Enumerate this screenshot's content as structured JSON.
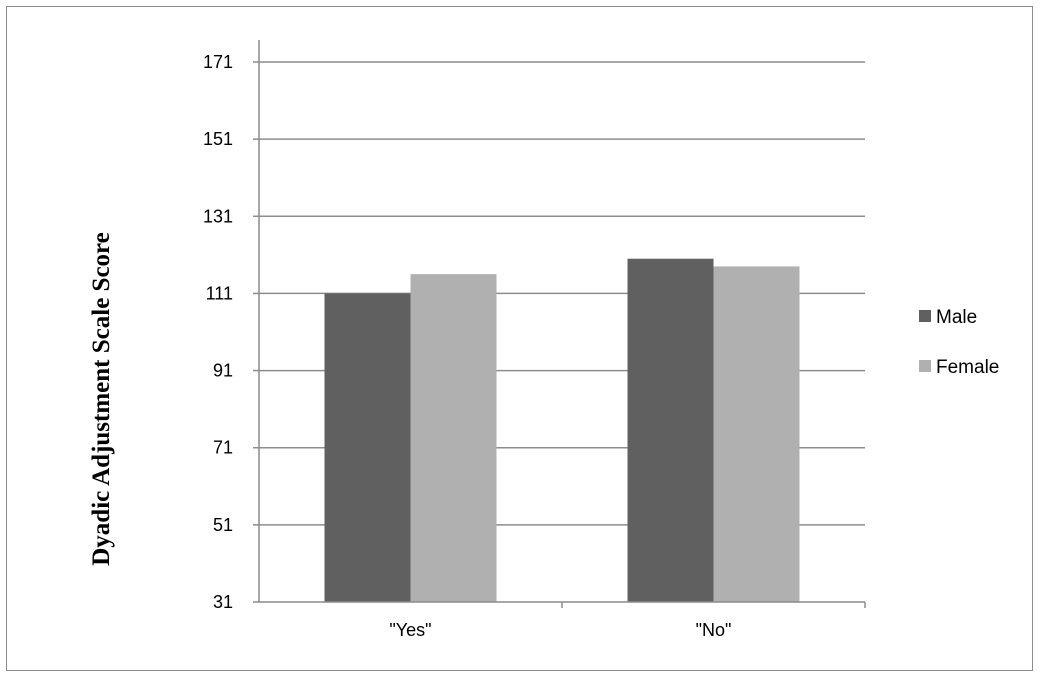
{
  "chart_data": {
    "type": "bar",
    "title": "",
    "xlabel": "",
    "ylabel": "Dyadic Adjustment Scale Score",
    "categories": [
      "\"Yes\"",
      "\"No\""
    ],
    "series": [
      {
        "name": "Male",
        "values": [
          111,
          120
        ],
        "color": "#606060"
      },
      {
        "name": "Female",
        "values": [
          116,
          118
        ],
        "color": "#b0b0b0"
      }
    ],
    "ylim": [
      31,
      171
    ],
    "yticks": [
      31,
      51,
      71,
      91,
      111,
      131,
      151,
      171
    ],
    "grid": true,
    "legend_position": "right",
    "gridline_color": "#8c8c8c",
    "axis_color": "#8c8c8c"
  }
}
